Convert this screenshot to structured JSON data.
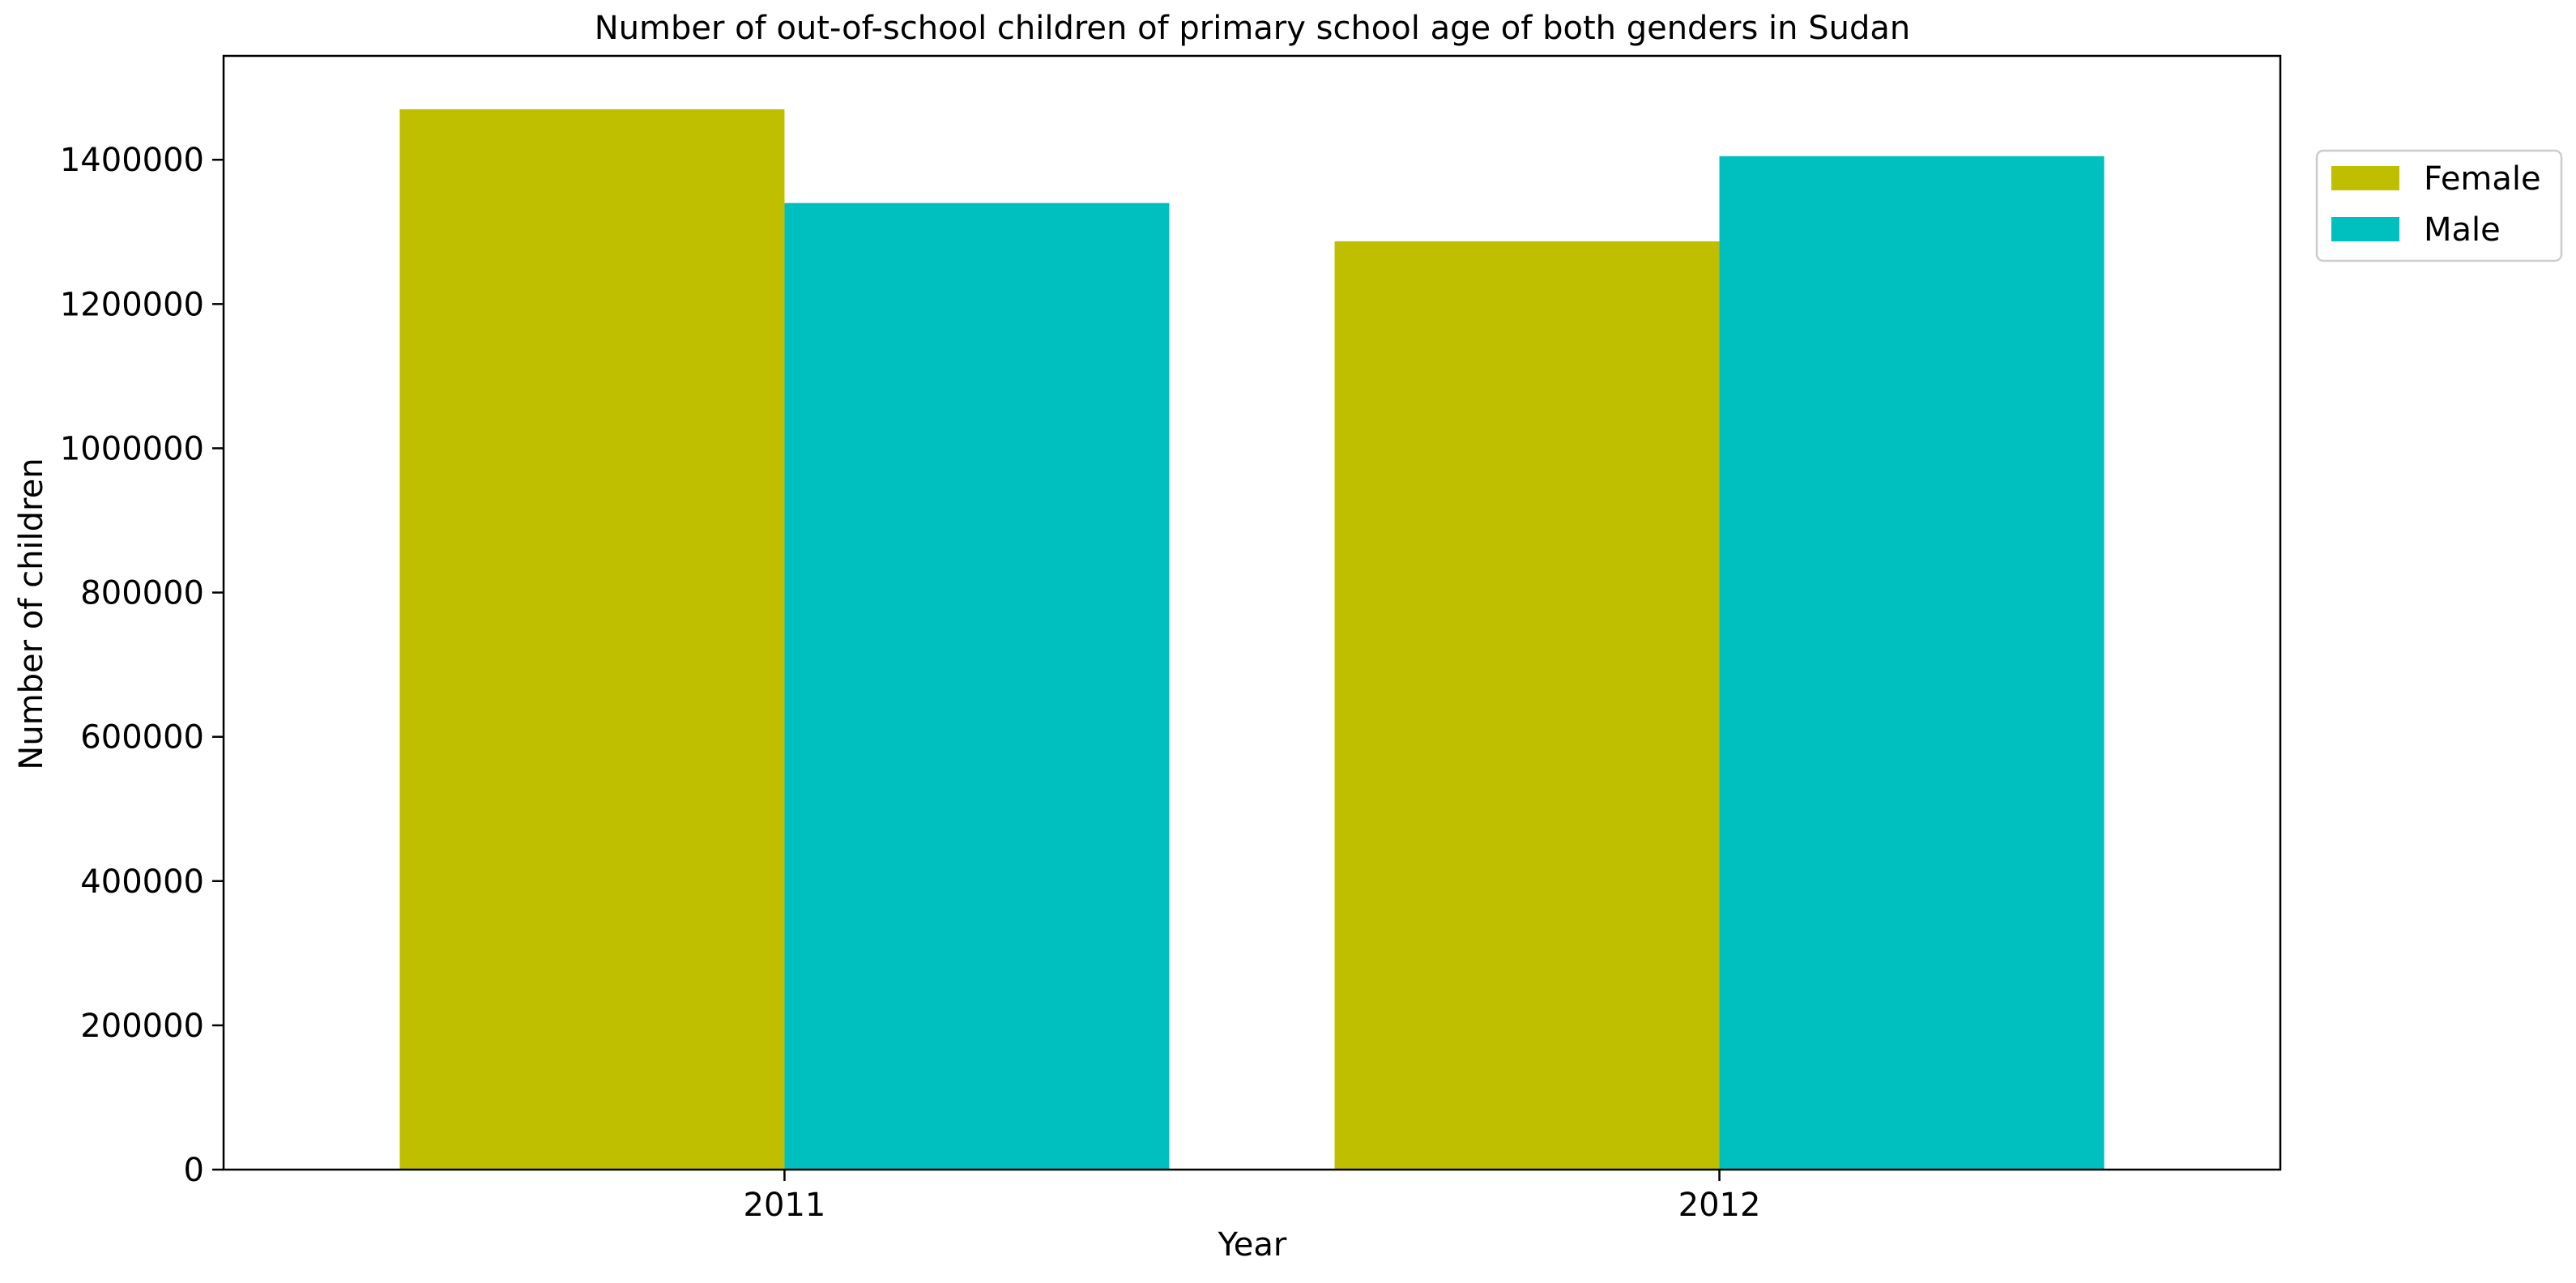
{
  "chart_data": {
    "type": "bar",
    "title": "Number of out-of-school children of primary school age of both genders in Sudan",
    "xlabel": "Year",
    "ylabel": "Number of children",
    "categories": [
      "2011",
      "2012"
    ],
    "series": [
      {
        "name": "Female",
        "color": "#bfbf00",
        "values": [
          1470000,
          1287000
        ]
      },
      {
        "name": "Male",
        "color": "#00bfbf",
        "values": [
          1340000,
          1405000
        ]
      }
    ],
    "ylim": [
      0,
      1544000
    ],
    "yticks": [
      0,
      200000,
      400000,
      600000,
      800000,
      1000000,
      1200000,
      1400000
    ],
    "ytick_labels": [
      "0",
      "200000",
      "400000",
      "600000",
      "800000",
      "1000000",
      "1200000",
      "1400000"
    ],
    "grid": false,
    "legend": {
      "placement": "upper-right outside plot",
      "entries": [
        "Female",
        "Male"
      ]
    }
  }
}
